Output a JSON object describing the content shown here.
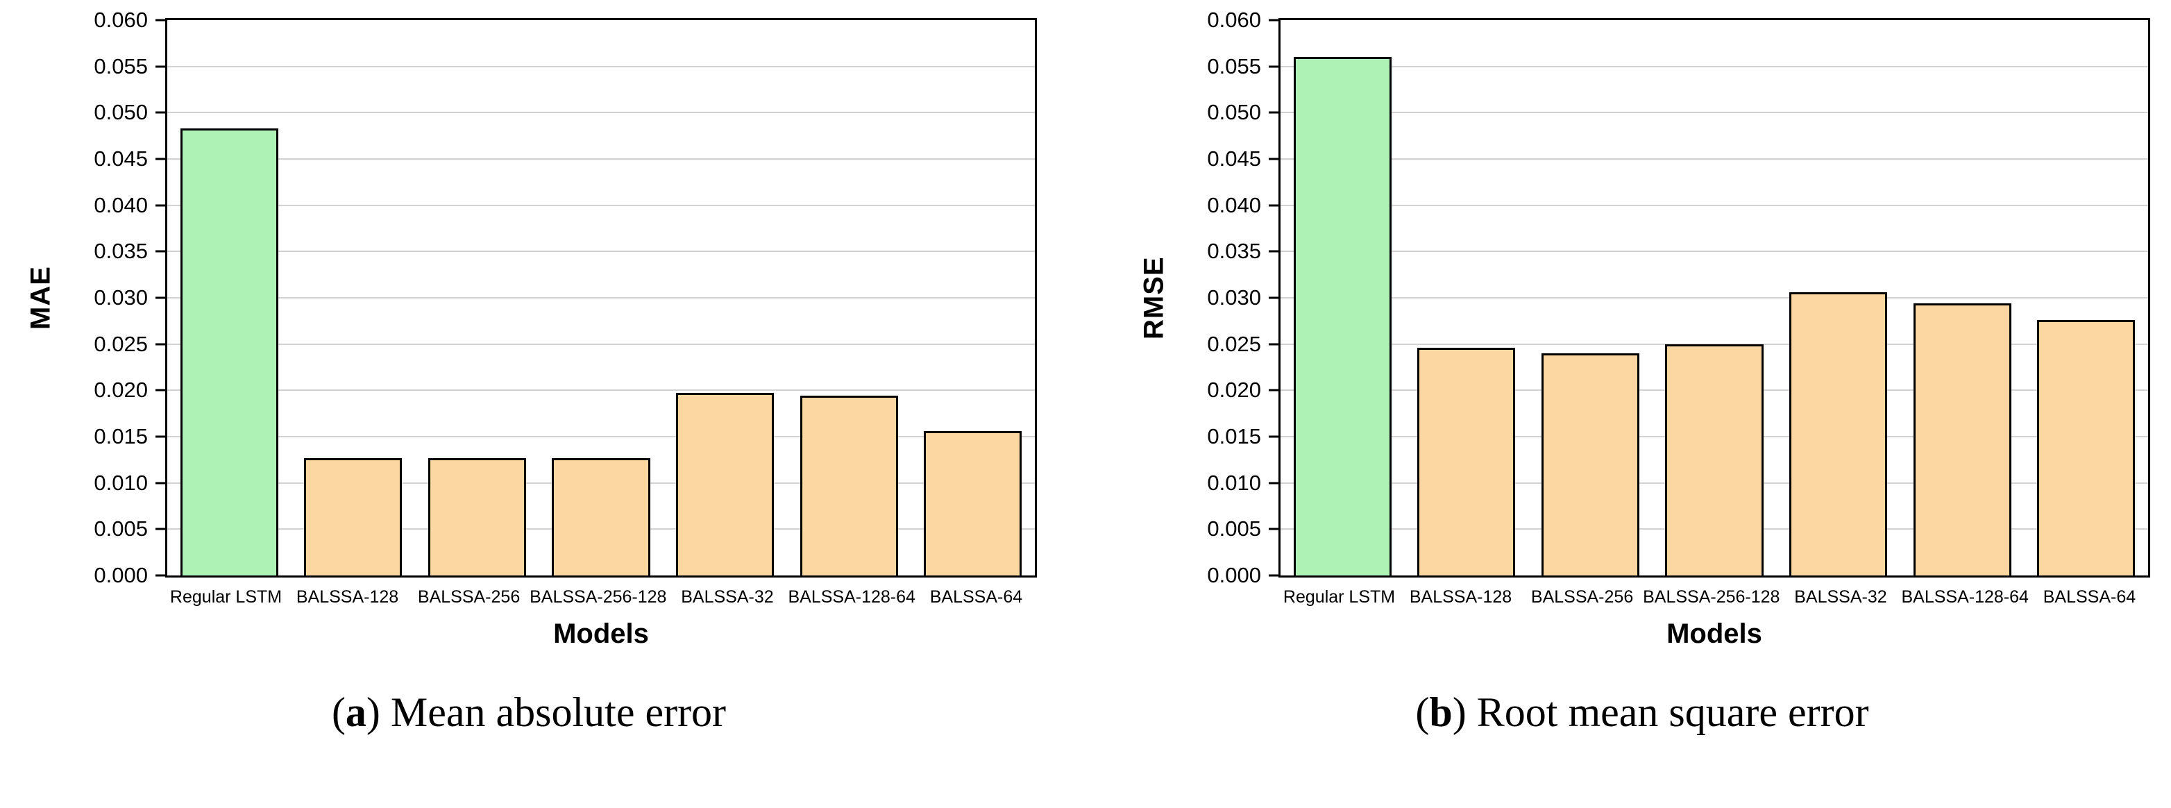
{
  "colors": {
    "highlight_bar": "#aef2b6",
    "default_bar": "#fcd7a2",
    "bar_border": "#000000",
    "grid_line": "#d2d2d2",
    "axis": "#000000",
    "background": "#ffffff"
  },
  "chart_data": [
    {
      "id": "mae",
      "type": "bar",
      "title": "",
      "ylabel": "MAE",
      "xlabel": "Models",
      "categories": [
        "Regular LSTM",
        "BALSSA-128",
        "BALSSA-256",
        "BALSSA-256-128",
        "BALSSA-32",
        "BALSSA-128-64",
        "BALSSA-64"
      ],
      "values": [
        0.0483,
        0.0127,
        0.0127,
        0.0127,
        0.0197,
        0.0194,
        0.0156
      ],
      "ylim": [
        0,
        0.06
      ],
      "ytick_step": 0.005,
      "ytick_decimals": 3,
      "grid": "horizontal",
      "legend": "none",
      "highlight_index": 0,
      "caption": {
        "open": "(",
        "letter": "a",
        "close": ")",
        "text": " Mean absolute error"
      }
    },
    {
      "id": "rmse",
      "type": "bar",
      "title": "",
      "ylabel": "RMSE",
      "xlabel": "Models",
      "categories": [
        "Regular LSTM",
        "BALSSA-128",
        "BALSSA-256",
        "BALSSA-256-128",
        "BALSSA-32",
        "BALSSA-128-64",
        "BALSSA-64"
      ],
      "values": [
        0.056,
        0.0246,
        0.024,
        0.025,
        0.0306,
        0.0294,
        0.0276
      ],
      "ylim": [
        0,
        0.06
      ],
      "ytick_step": 0.005,
      "ytick_decimals": 3,
      "grid": "horizontal",
      "legend": "none",
      "highlight_index": 0,
      "caption": {
        "open": "(",
        "letter": "b",
        "close": ")",
        "text": " Root mean square error"
      }
    }
  ]
}
